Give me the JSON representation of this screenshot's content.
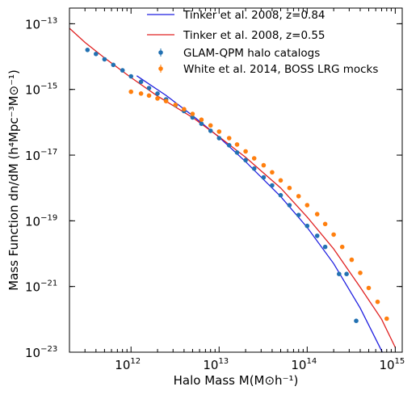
{
  "chart_data": {
    "type": "scatter",
    "xlabel": "Halo Mass M(M⊙h⁻¹)",
    "ylabel": "Mass Function dn/dM (h⁴Mpc⁻³M⊙⁻¹)",
    "xscale": "log",
    "yscale": "log",
    "xlim": [
      200000000000.0,
      1200000000000000.0
    ],
    "ylim": [
      1e-23,
      3e-13
    ],
    "x_ticks": [
      {
        "value": 1000000000000.0,
        "base": "10",
        "exp": "12"
      },
      {
        "value": 10000000000000.0,
        "base": "10",
        "exp": "13"
      },
      {
        "value": 100000000000000.0,
        "base": "10",
        "exp": "14"
      },
      {
        "value": 1000000000000000.0,
        "base": "10",
        "exp": "15"
      }
    ],
    "y_ticks": [
      {
        "value": 1e-13,
        "base": "10",
        "exp": "−13"
      },
      {
        "value": 1e-15,
        "base": "10",
        "exp": "−15"
      },
      {
        "value": 1e-17,
        "base": "10",
        "exp": "−17"
      },
      {
        "value": 1e-19,
        "base": "10",
        "exp": "−19"
      },
      {
        "value": 1e-21,
        "base": "10",
        "exp": "−21"
      },
      {
        "value": 1e-23,
        "base": "10",
        "exp": "−23"
      }
    ],
    "legend_position": "top-right",
    "series": [
      {
        "name": "Tinker et al. 2008, z=0.84",
        "kind": "line",
        "color": "#1f1fe0",
        "x": [
          1160000000000.0,
          2500000000000.0,
          5000000000000.0,
          10000000000000.0,
          20000000000000.0,
          50000000000000.0,
          100000000000000.0,
          200000000000000.0,
          400000000000000.0,
          700000000000000.0,
          1000000000000000.0
        ],
        "y": [
          2.6e-15,
          6.6e-16,
          1.6e-16,
          3.5e-17,
          6.3e-18,
          5.5e-19,
          6.3e-20,
          5e-21,
          2.2e-22,
          1.1e-23,
          1.2e-24
        ]
      },
      {
        "name": "Tinker et al. 2008, z=0.55",
        "kind": "line",
        "color": "#e02020",
        "x": [
          200000000000.0,
          300000000000.0,
          500000000000.0,
          1000000000000.0,
          2000000000000.0,
          5000000000000.0,
          10000000000000.0,
          20000000000000.0,
          50000000000000.0,
          100000000000000.0,
          200000000000000.0,
          400000000000000.0,
          700000000000000.0,
          1000000000000000.0
        ],
        "y": [
          7.3e-14,
          2.7e-14,
          9.1e-15,
          2.3e-15,
          6.3e-16,
          1.4e-16,
          3.6e-17,
          8.6e-18,
          1e-18,
          1.3e-19,
          1.4e-20,
          9.5e-22,
          1e-22,
          1.4e-23
        ]
      },
      {
        "name": "GLAM-QPM halo catalogs",
        "kind": "points",
        "color": "#2271b2",
        "x": [
          320000000000.0,
          400000000000.0,
          500000000000.0,
          630000000000.0,
          800000000000.0,
          1000000000000.0,
          1300000000000.0,
          1600000000000.0,
          2000000000000.0,
          2500000000000.0,
          3200000000000.0,
          4000000000000.0,
          5000000000000.0,
          6300000000000.0,
          8000000000000.0,
          10000000000000.0,
          13000000000000.0,
          16000000000000.0,
          20000000000000.0,
          25000000000000.0,
          32000000000000.0,
          40000000000000.0,
          50000000000000.0,
          63000000000000.0,
          80000000000000.0,
          100000000000000.0,
          130000000000000.0,
          160000000000000.0,
          230000000000000.0,
          280000000000000.0,
          360000000000000.0
        ],
        "y": [
          1.6e-14,
          1.2e-14,
          8.3e-15,
          5.6e-15,
          3.8e-15,
          2.5e-15,
          1.7e-15,
          1.1e-15,
          7.5e-16,
          5e-16,
          3.3e-16,
          2.2e-16,
          1.4e-16,
          9e-17,
          5.5e-17,
          3.3e-17,
          2e-17,
          1.2e-17,
          7e-18,
          3.9e-18,
          2.1e-18,
          1.2e-18,
          6e-19,
          3e-19,
          1.5e-19,
          7e-20,
          3.5e-20,
          1.6e-20,
          2.4e-21,
          2.4e-21,
          9e-23
        ]
      },
      {
        "name": "White et al. 2014, BOSS LRG mocks",
        "kind": "points",
        "color": "#ff7f0e",
        "x": [
          1000000000000.0,
          1300000000000.0,
          1600000000000.0,
          2000000000000.0,
          2500000000000.0,
          3200000000000.0,
          4000000000000.0,
          5000000000000.0,
          6300000000000.0,
          8000000000000.0,
          10000000000000.0,
          13000000000000.0,
          16000000000000.0,
          20000000000000.0,
          25000000000000.0,
          32000000000000.0,
          40000000000000.0,
          50000000000000.0,
          63000000000000.0,
          80000000000000.0,
          100000000000000.0,
          130000000000000.0,
          160000000000000.0,
          200000000000000.0,
          250000000000000.0,
          320000000000000.0,
          400000000000000.0,
          500000000000000.0,
          630000000000000.0,
          800000000000000.0
        ],
        "y": [
          8.5e-16,
          7.5e-16,
          6.5e-16,
          5.3e-16,
          4.4e-16,
          3.4e-16,
          2.5e-16,
          1.8e-16,
          1.2e-16,
          8e-17,
          5.2e-17,
          3.3e-17,
          2.1e-17,
          1.3e-17,
          8e-18,
          4.9e-18,
          3e-18,
          1.7e-18,
          1e-18,
          5.6e-19,
          3e-19,
          1.6e-19,
          8e-20,
          3.8e-20,
          1.6e-20,
          6.5e-21,
          2.6e-21,
          9e-22,
          3.4e-22,
          1.05e-22
        ]
      }
    ]
  }
}
